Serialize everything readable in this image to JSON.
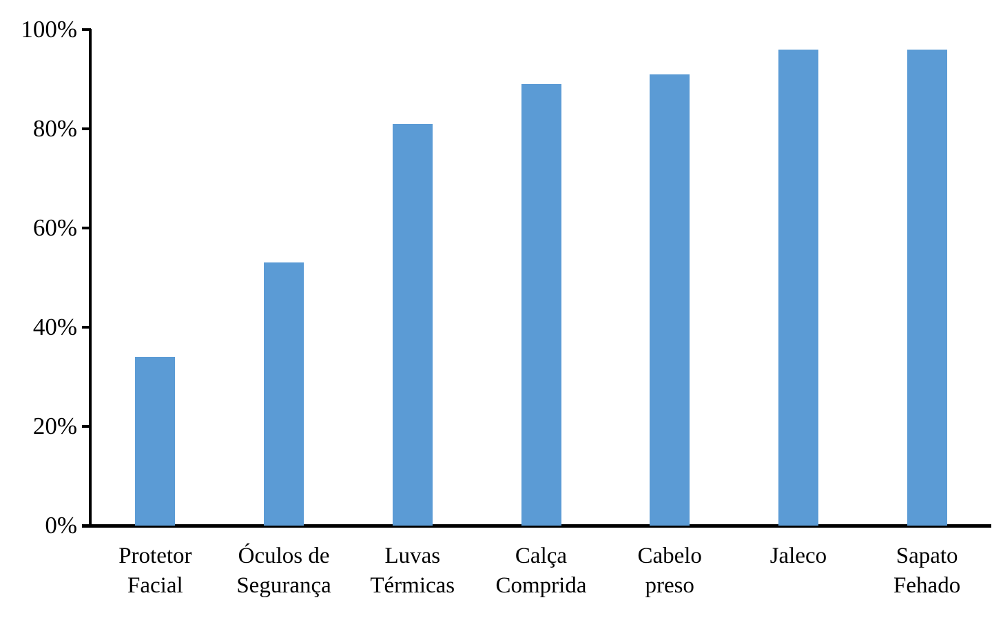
{
  "chart_data": {
    "type": "bar",
    "title": "",
    "xlabel": "",
    "ylabel": "",
    "categories": [
      "Protetor Facial",
      "Óculos de Segurança",
      "Luvas Térmicas",
      "Calça Comprida",
      "Cabelo preso",
      "Jaleco",
      "Sapato Fehado"
    ],
    "categories_wrapped": [
      [
        "Protetor",
        "Facial"
      ],
      [
        "Óculos de",
        "Segurança"
      ],
      [
        "Luvas",
        "Térmicas"
      ],
      [
        "Calça",
        "Comprida"
      ],
      [
        "Cabelo",
        "preso"
      ],
      [
        "Jaleco"
      ],
      [
        "Sapato",
        "Fehado"
      ]
    ],
    "values": [
      34,
      53,
      81,
      89,
      91,
      96,
      96
    ],
    "unit": "%",
    "ylim": [
      0,
      100
    ],
    "ytick_step": 20,
    "ytick_labels": [
      "0%",
      "20%",
      "40%",
      "60%",
      "80%",
      "100%"
    ],
    "grid": false,
    "legend": null,
    "colors": {
      "bar_fill": "#5B9BD5",
      "axis": "#000000",
      "text": "#000000",
      "background": "#ffffff"
    }
  }
}
